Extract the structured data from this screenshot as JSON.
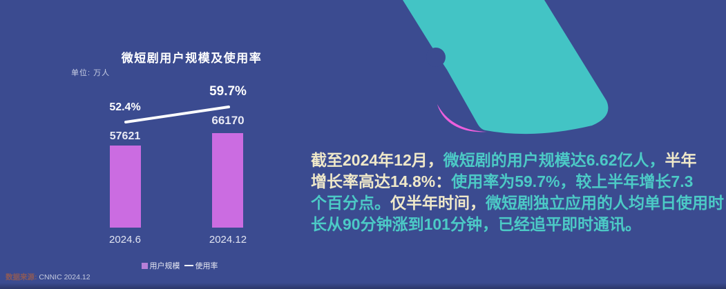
{
  "page": {
    "bg_color": "#3B4B90"
  },
  "illustration": {
    "phone_color": "#43C4C5",
    "accent_color": "#EC5FDC"
  },
  "chart": {
    "title": "微短剧用户规模及使用率",
    "unit_label": "单位: 万人",
    "legend": [
      {
        "label": "用户规模",
        "type": "square",
        "color": "#B77FD8"
      },
      {
        "label": "使用率",
        "type": "line",
        "color": "#FFFFFF"
      }
    ],
    "source_label": "数据来源:",
    "source_value": "CNNIC 2024.12"
  },
  "chart_data": {
    "type": "bar",
    "title": "微短剧用户规模及使用率",
    "categories": [
      "2024.6",
      "2024.12"
    ],
    "series": [
      {
        "name": "用户规模",
        "type": "bar",
        "unit": "万人",
        "color": "#CB6CE1",
        "values": [
          57621,
          66170
        ]
      },
      {
        "name": "使用率",
        "type": "line",
        "unit": "%",
        "color": "#FFFFFF",
        "values": [
          52.4,
          59.7
        ]
      }
    ],
    "value_labels": [
      "57621",
      "66170"
    ],
    "rate_labels": [
      "52.4%",
      "59.7%"
    ],
    "ylabel": "万人",
    "legend_position": "bottom",
    "grid": false
  },
  "summary": {
    "colors": {
      "yellow": "#EFE8C9",
      "teal": "#4CCAC6"
    },
    "lines": [
      {
        "segments": [
          {
            "text": "截至2024年12月，",
            "color": "yellow"
          },
          {
            "text": "微短剧的用户规模达6.62亿人，",
            "color": "teal"
          },
          {
            "text": "半年",
            "color": "yellow"
          }
        ]
      },
      {
        "segments": [
          {
            "text": "增长率高达14.8%：",
            "color": "yellow"
          },
          {
            "text": "使用率为59.7%，较上半年增长7.3",
            "color": "teal"
          }
        ]
      },
      {
        "segments": [
          {
            "text": "个百分点。",
            "color": "teal"
          },
          {
            "text": "仅半年时间，",
            "color": "yellow"
          },
          {
            "text": "微短剧独立应用的人均单日使用时",
            "color": "teal"
          }
        ]
      },
      {
        "segments": [
          {
            "text": "长从90分钟涨到101分钟，已经追平即时通讯。",
            "color": "teal"
          }
        ]
      }
    ]
  }
}
